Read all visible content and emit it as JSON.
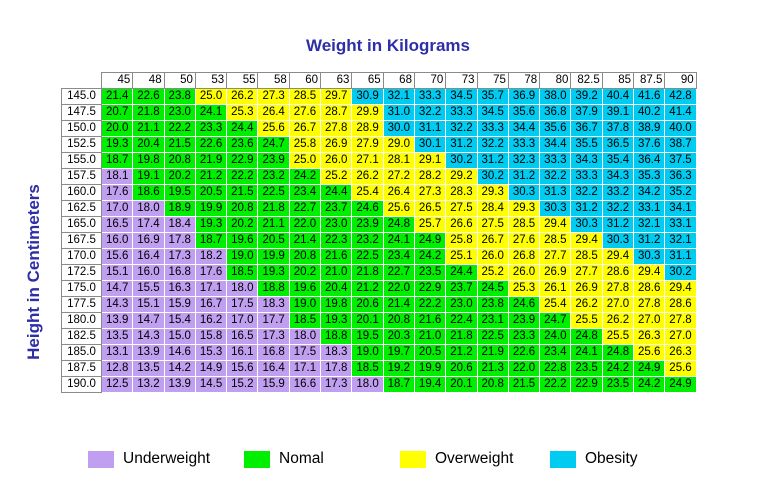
{
  "titles": {
    "top": "Weight in Kilograms",
    "side": "Height in Centimeters"
  },
  "chart_data": {
    "type": "table",
    "title": "Weight in Kilograms",
    "ylabel": "Height in Centimeters",
    "colors": {
      "underweight": "#c09ef0",
      "normal": "#00ee00",
      "overweight": "#ffff00",
      "obesity": "#00ccf2"
    },
    "weights": [
      "45",
      "48",
      "50",
      "53",
      "55",
      "58",
      "60",
      "63",
      "65",
      "68",
      "70",
      "73",
      "75",
      "78",
      "80",
      "82.5",
      "85",
      "87.5",
      "90"
    ],
    "heights": [
      "145.0",
      "147.5",
      "150.0",
      "152.5",
      "155.0",
      "157.5",
      "160.0",
      "162.5",
      "165.0",
      "167.5",
      "170.0",
      "172.5",
      "175.0",
      "177.5",
      "180.0",
      "182.5",
      "185.0",
      "187.5",
      "190.0"
    ],
    "values": [
      [
        "21.4",
        "22.6",
        "23.8",
        "25.0",
        "26.2",
        "27.3",
        "28.5",
        "29.7",
        "30.9",
        "32.1",
        "33.3",
        "34.5",
        "35.7",
        "36.9",
        "38.0",
        "39.2",
        "40.4",
        "41.6",
        "42.8"
      ],
      [
        "20.7",
        "21.8",
        "23.0",
        "24.1",
        "25.3",
        "26.4",
        "27.6",
        "28.7",
        "29.9",
        "31.0",
        "32.2",
        "33.3",
        "34.5",
        "35.6",
        "36.8",
        "37.9",
        "39.1",
        "40.2",
        "41.4"
      ],
      [
        "20.0",
        "21.1",
        "22.2",
        "23.3",
        "24.4",
        "25.6",
        "26.7",
        "27.8",
        "28.9",
        "30.0",
        "31.1",
        "32.2",
        "33.3",
        "34.4",
        "35.6",
        "36.7",
        "37.8",
        "38.9",
        "40.0"
      ],
      [
        "19.3",
        "20.4",
        "21.5",
        "22.6",
        "23.6",
        "24.7",
        "25.8",
        "26.9",
        "27.9",
        "29.0",
        "30.1",
        "31.2",
        "32.2",
        "33.3",
        "34.4",
        "35.5",
        "36.5",
        "37.6",
        "38.7"
      ],
      [
        "18.7",
        "19.8",
        "20.8",
        "21.9",
        "22.9",
        "23.9",
        "25.0",
        "26.0",
        "27.1",
        "28.1",
        "29.1",
        "30.2",
        "31.2",
        "32.3",
        "33.3",
        "34.3",
        "35.4",
        "36.4",
        "37.5"
      ],
      [
        "18.1",
        "19.1",
        "20.2",
        "21.2",
        "22.2",
        "23.2",
        "24.2",
        "25.2",
        "26.2",
        "27.2",
        "28.2",
        "29.2",
        "30.2",
        "31.2",
        "32.2",
        "33.3",
        "34.3",
        "35.3",
        "36.3"
      ],
      [
        "17.6",
        "18.6",
        "19.5",
        "20.5",
        "21.5",
        "22.5",
        "23.4",
        "24.4",
        "25.4",
        "26.4",
        "27.3",
        "28.3",
        "29.3",
        "30.3",
        "31.3",
        "32.2",
        "33.2",
        "34.2",
        "35.2"
      ],
      [
        "17.0",
        "18.0",
        "18.9",
        "19.9",
        "20.8",
        "21.8",
        "22.7",
        "23.7",
        "24.6",
        "25.6",
        "26.5",
        "27.5",
        "28.4",
        "29.3",
        "30.3",
        "31.2",
        "32.2",
        "33.1",
        "34.1"
      ],
      [
        "16.5",
        "17.4",
        "18.4",
        "19.3",
        "20.2",
        "21.1",
        "22.0",
        "23.0",
        "23.9",
        "24.8",
        "25.7",
        "26.6",
        "27.5",
        "28.5",
        "29.4",
        "30.3",
        "31.2",
        "32.1",
        "33.1"
      ],
      [
        "16.0",
        "16.9",
        "17.8",
        "18.7",
        "19.6",
        "20.5",
        "21.4",
        "22.3",
        "23.2",
        "24.1",
        "24.9",
        "25.8",
        "26.7",
        "27.6",
        "28.5",
        "29.4",
        "30.3",
        "31.2",
        "32.1"
      ],
      [
        "15.6",
        "16.4",
        "17.3",
        "18.2",
        "19.0",
        "19.9",
        "20.8",
        "21.6",
        "22.5",
        "23.4",
        "24.2",
        "25.1",
        "26.0",
        "26.8",
        "27.7",
        "28.5",
        "29.4",
        "30.3",
        "31.1"
      ],
      [
        "15.1",
        "16.0",
        "16.8",
        "17.6",
        "18.5",
        "19.3",
        "20.2",
        "21.0",
        "21.8",
        "22.7",
        "23.5",
        "24.4",
        "25.2",
        "26.0",
        "26.9",
        "27.7",
        "28.6",
        "29.4",
        "30.2"
      ],
      [
        "14.7",
        "15.5",
        "16.3",
        "17.1",
        "18.0",
        "18.8",
        "19.6",
        "20.4",
        "21.2",
        "22.0",
        "22.9",
        "23.7",
        "24.5",
        "25.3",
        "26.1",
        "26.9",
        "27.8",
        "28.6",
        "29.4"
      ],
      [
        "14.3",
        "15.1",
        "15.9",
        "16.7",
        "17.5",
        "18.3",
        "19.0",
        "19.8",
        "20.6",
        "21.4",
        "22.2",
        "23.0",
        "23.8",
        "24.6",
        "25.4",
        "26.2",
        "27.0",
        "27.8",
        "28.6"
      ],
      [
        "13.9",
        "14.7",
        "15.4",
        "16.2",
        "17.0",
        "17.7",
        "18.5",
        "19.3",
        "20.1",
        "20.8",
        "21.6",
        "22.4",
        "23.1",
        "23.9",
        "24.7",
        "25.5",
        "26.2",
        "27.0",
        "27.8"
      ],
      [
        "13.5",
        "14.3",
        "15.0",
        "15.8",
        "16.5",
        "17.3",
        "18.0",
        "18.8",
        "19.5",
        "20.3",
        "21.0",
        "21.8",
        "22.5",
        "23.3",
        "24.0",
        "24.8",
        "25.5",
        "26.3",
        "27.0"
      ],
      [
        "13.1",
        "13.9",
        "14.6",
        "15.3",
        "16.1",
        "16.8",
        "17.5",
        "18.3",
        "19.0",
        "19.7",
        "20.5",
        "21.2",
        "21.9",
        "22.6",
        "23.4",
        "24.1",
        "24.8",
        "25.6",
        "26.3"
      ],
      [
        "12.8",
        "13.5",
        "14.2",
        "14.9",
        "15.6",
        "16.4",
        "17.1",
        "17.8",
        "18.5",
        "19.2",
        "19.9",
        "20.6",
        "21.3",
        "22.0",
        "22.8",
        "23.5",
        "24.2",
        "24.9",
        "25.6"
      ],
      [
        "12.5",
        "13.2",
        "13.9",
        "14.5",
        "15.2",
        "15.9",
        "16.6",
        "17.3",
        "18.0",
        "18.7",
        "19.4",
        "20.1",
        "20.8",
        "21.5",
        "22.2",
        "22.9",
        "23.5",
        "24.2",
        "24.9"
      ]
    ],
    "legend": [
      {
        "key": "underweight",
        "label": "Underweight"
      },
      {
        "key": "normal",
        "label": "Nomal"
      },
      {
        "key": "overweight",
        "label": "Overweight"
      },
      {
        "key": "obesity",
        "label": "Obesity"
      }
    ],
    "legend_position": "bottom"
  }
}
